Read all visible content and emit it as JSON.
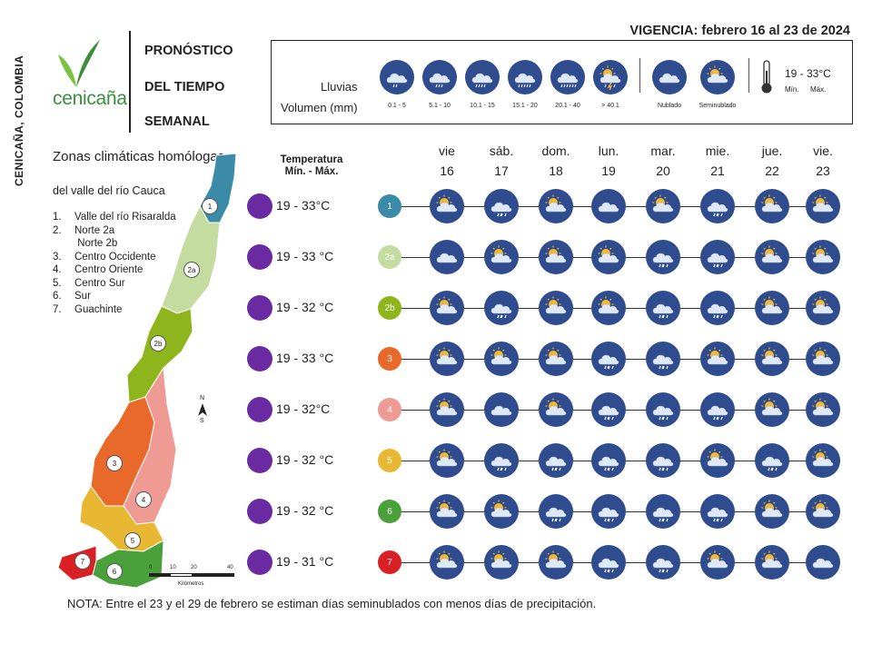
{
  "brand": {
    "side_text": "CENICAÑA, COLOMBIA",
    "logo_word": "cenicaña",
    "logo_color": "#3a8f3a"
  },
  "title_lines": [
    "PRONÓSTICO",
    "DEL TIEMPO",
    "SEMANAL"
  ],
  "vigencia": "VIGENCIA: febrero 16 al 23 de 2024",
  "legend": {
    "lluvias_label": "Lluvias",
    "volumen_label": "Volumen (mm)",
    "rain_icons": [
      {
        "label": "0.1 - 5",
        "icon": "cloud-rain-1-icon"
      },
      {
        "label": "5.1 - 10",
        "icon": "cloud-rain-2-icon"
      },
      {
        "label": "10.1 - 15",
        "icon": "cloud-rain-3-icon"
      },
      {
        "label": "15.1 - 20",
        "icon": "cloud-rain-4-icon"
      },
      {
        "label": "20.1 - 40",
        "icon": "cloud-rain-5-icon"
      },
      {
        "label": "> 40.1",
        "icon": "storm-icon"
      }
    ],
    "nublado_label": "Nublado",
    "seminublado_label": "Seminublado",
    "temp_range": "19 - 33°C",
    "min_label": "Mín.",
    "max_label": "Máx."
  },
  "zones_panel": {
    "title": "Zonas climáticas homólogas",
    "subtitle": "del valle del río Cauca",
    "zones": [
      {
        "num": "1.",
        "name": "Valle del río Risaralda"
      },
      {
        "num": "2.",
        "name": "Norte 2a"
      },
      {
        "num": "",
        "name": " Norte 2b"
      },
      {
        "num": "3.",
        "name": "Centro Occidente"
      },
      {
        "num": "4.",
        "name": "Centro Oriente"
      },
      {
        "num": "5.",
        "name": "Centro Sur"
      },
      {
        "num": "6.",
        "name": "Sur"
      },
      {
        "num": "7.",
        "name": "Guachinte"
      }
    ],
    "map_labels": [
      "1",
      "2a",
      "2b",
      "3",
      "4",
      "5",
      "6",
      "7"
    ],
    "compass_n": "N",
    "compass_s": "S",
    "scale_ticks": [
      "0",
      "10",
      "20",
      "40"
    ],
    "scale_unit": "Kilómetros"
  },
  "temp_header": "Temperatura Mín. - Máx.",
  "days": [
    {
      "name": "vie",
      "num": "16"
    },
    {
      "name": "sáb.",
      "num": "17"
    },
    {
      "name": "dom.",
      "num": "18"
    },
    {
      "name": "lun.",
      "num": "19"
    },
    {
      "name": "mar.",
      "num": "20"
    },
    {
      "name": "mie.",
      "num": "21"
    },
    {
      "name": "jue.",
      "num": "22"
    },
    {
      "name": "vie.",
      "num": "23"
    }
  ],
  "rows": [
    {
      "zone": "1",
      "color": "#3b8aa8",
      "temp": "19 - 33°C",
      "icons": [
        "partly",
        "rain",
        "partly",
        "cloud",
        "partly",
        "rain",
        "partly",
        "partly"
      ]
    },
    {
      "zone": "2a",
      "color": "#c4dca0",
      "temp": "19 - 33 °C",
      "icons": [
        "cloud",
        "partly",
        "partly",
        "partly",
        "rain",
        "rain",
        "partly",
        "partly"
      ]
    },
    {
      "zone": "2b",
      "color": "#8fb51d",
      "temp": "19 - 32 °C",
      "icons": [
        "partly",
        "rain",
        "partly",
        "partly",
        "rain",
        "rain",
        "partly",
        "partly"
      ]
    },
    {
      "zone": "3",
      "color": "#e8692a",
      "temp": "19 - 33 °C",
      "icons": [
        "partly",
        "partly",
        "partly",
        "rain",
        "rain",
        "partly",
        "partly",
        "partly"
      ]
    },
    {
      "zone": "4",
      "color": "#f09a94",
      "temp": "19 - 32°C",
      "icons": [
        "partly",
        "cloud",
        "partly",
        "rain",
        "rain",
        "rain",
        "partly",
        "partly"
      ]
    },
    {
      "zone": "5",
      "color": "#e9b832",
      "temp": "19 - 32 °C",
      "icons": [
        "partly",
        "rain",
        "rain",
        "rain",
        "rain",
        "partly",
        "rain",
        "partly"
      ]
    },
    {
      "zone": "6",
      "color": "#4aa03a",
      "temp": "19 - 32 °C",
      "icons": [
        "partly",
        "partly",
        "rain",
        "rain",
        "rain",
        "rain",
        "partly",
        "partly"
      ]
    },
    {
      "zone": "7",
      "color": "#d92025",
      "temp": "19 - 31 °C",
      "icons": [
        "partly",
        "partly",
        "partly",
        "rain",
        "rain",
        "partly",
        "partly",
        "cloud"
      ]
    }
  ],
  "nota": "NOTA: Entre el 23 y el 29 de febrero se estiman días seminublados con menos días de precipitación."
}
